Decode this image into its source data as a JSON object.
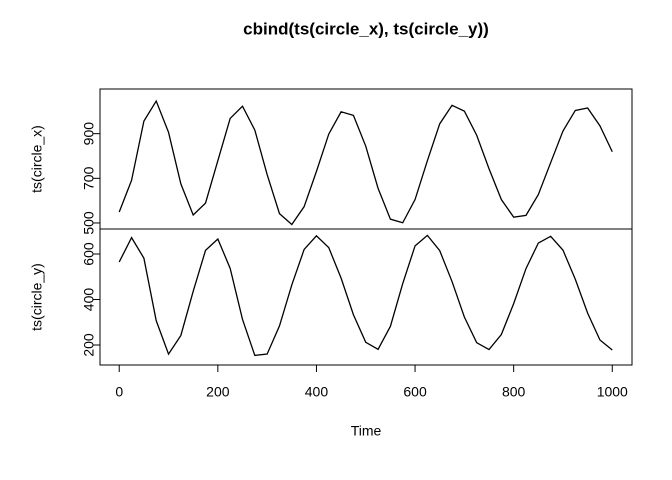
{
  "chart_data": [
    {
      "type": "line",
      "title": "cbind(ts(circle_x), ts(circle_y))",
      "y_label": "ts(circle_x)",
      "x": [
        0,
        25,
        50,
        75,
        100,
        125,
        150,
        175,
        200,
        225,
        250,
        275,
        300,
        325,
        350,
        375,
        400,
        425,
        450,
        475,
        500,
        525,
        550,
        575,
        600,
        625,
        650,
        675,
        700,
        725,
        750,
        775,
        800,
        825,
        850,
        875,
        900,
        925,
        950,
        975,
        1000
      ],
      "series": [
        {
          "name": "ts(circle_x)",
          "color": "#000000",
          "values": [
            549,
            691,
            956,
            1046,
            906,
            675,
            536,
            589,
            779,
            968,
            1023,
            916,
            717,
            542,
            493,
            573,
            731,
            898,
            998,
            982,
            844,
            655,
            517,
            501,
            605,
            779,
            944,
            1027,
            1001,
            893,
            743,
            605,
            526,
            534,
            627,
            770,
            912,
            1004,
            1015,
            935,
            819
          ]
        }
      ],
      "xlim": [
        -39,
        1040
      ],
      "ylim": [
        473,
        1100
      ],
      "yticks": [
        500,
        700,
        900
      ]
    },
    {
      "type": "line",
      "y_label": "ts(circle_y)",
      "x_label": "Time",
      "x": [
        0,
        25,
        50,
        75,
        100,
        125,
        150,
        175,
        200,
        225,
        250,
        275,
        300,
        325,
        350,
        375,
        400,
        425,
        450,
        475,
        500,
        525,
        550,
        575,
        600,
        625,
        650,
        675,
        700,
        725,
        750,
        775,
        800,
        825,
        850,
        875,
        900,
        925,
        950,
        975,
        1000
      ],
      "series": [
        {
          "name": "ts(circle_y)",
          "color": "#000000",
          "values": [
            565,
            672,
            582,
            307,
            160,
            242,
            436,
            616,
            666,
            537,
            313,
            154,
            160,
            284,
            464,
            620,
            680,
            628,
            494,
            333,
            212,
            181,
            282,
            470,
            636,
            682,
            615,
            479,
            323,
            210,
            180,
            246,
            382,
            536,
            648,
            678,
            617,
            489,
            340,
            222,
            178
          ]
        }
      ],
      "xlim": [
        -39,
        1040
      ],
      "ylim": [
        112,
        710
      ],
      "yticks": [
        200,
        400,
        600
      ],
      "xticks": [
        0,
        200,
        400,
        600,
        800,
        1000
      ]
    }
  ]
}
